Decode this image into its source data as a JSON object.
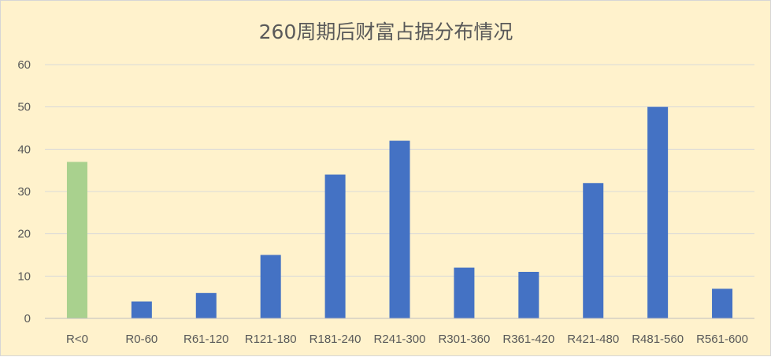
{
  "chart_data": {
    "type": "bar",
    "title": "260周期后财富占据分布情况",
    "xlabel": "",
    "ylabel": "",
    "categories": [
      "R<0",
      "R0-60",
      "R61-120",
      "R121-180",
      "R181-240",
      "R241-300",
      "R301-360",
      "R361-420",
      "R421-480",
      "R481-560",
      "R561-600"
    ],
    "values": [
      37,
      4,
      6,
      15,
      34,
      42,
      12,
      11,
      32,
      50,
      7
    ],
    "bar_colors": [
      "#a9d18e",
      "#4472c4",
      "#4472c4",
      "#4472c4",
      "#4472c4",
      "#4472c4",
      "#4472c4",
      "#4472c4",
      "#4472c4",
      "#4472c4",
      "#4472c4"
    ],
    "ylim": [
      0,
      60
    ],
    "yticks": [
      "0",
      "10",
      "20",
      "30",
      "40",
      "50",
      "60"
    ],
    "grid": true,
    "legend": "none",
    "background_color": "#fff2cc"
  }
}
